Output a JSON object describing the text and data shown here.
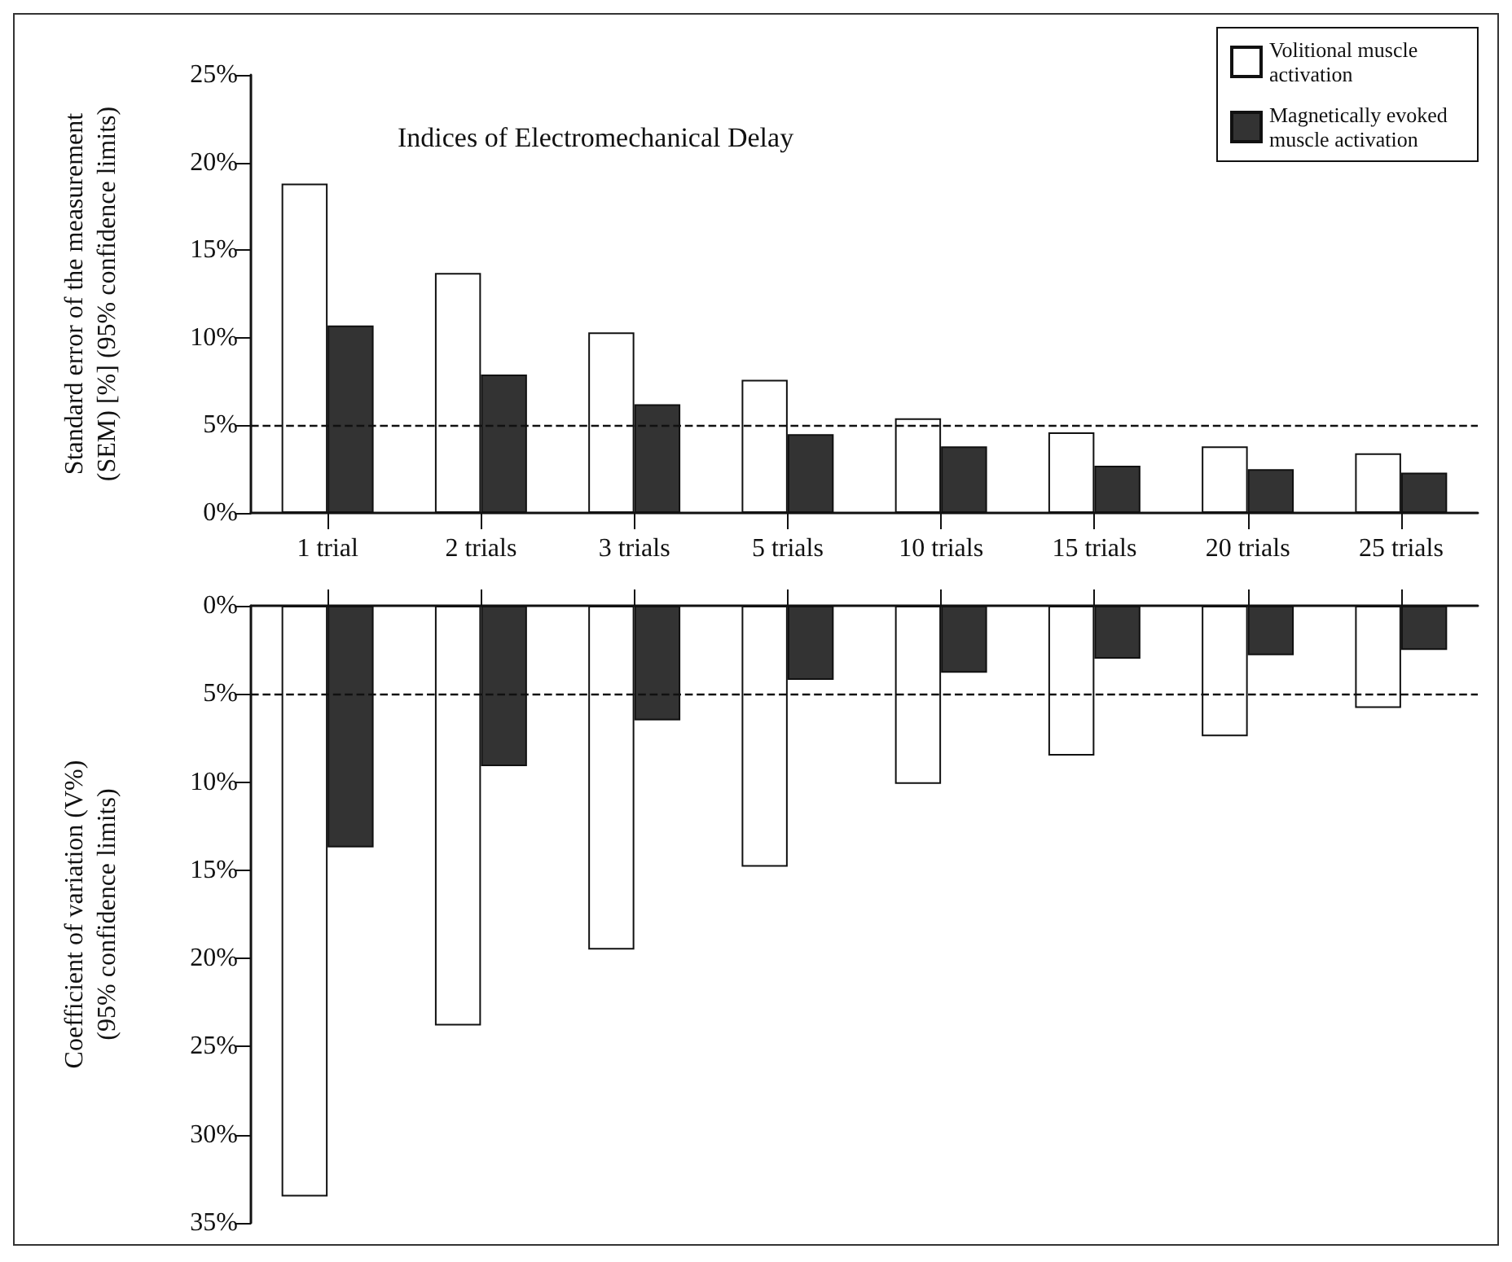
{
  "chart_data": [
    {
      "type": "bar",
      "title": "Indices of Electromechanical Delay",
      "ylabel": "Standard error of the measurement\n(SEM) [%] (95% confidence limits)",
      "categories": [
        "1 trial",
        "2 trials",
        "3 trials",
        "5 trials",
        "10 trials",
        "15 trials",
        "20 trials",
        "25 trials"
      ],
      "series": [
        {
          "name": "Volitional muscle activation",
          "color": "#ffffff",
          "values": [
            18.8,
            13.7,
            10.3,
            7.6,
            5.4,
            4.6,
            3.8,
            3.4
          ]
        },
        {
          "name": "Magnetically evoked muscle activation",
          "color": "#333333",
          "values": [
            10.7,
            7.9,
            6.2,
            4.5,
            3.8,
            2.7,
            2.5,
            2.3
          ]
        }
      ],
      "ylim": [
        0,
        25
      ],
      "yticks": [
        {
          "value": 0,
          "label": "0%"
        },
        {
          "value": 5,
          "label": "5%"
        },
        {
          "value": 10,
          "label": "10%"
        },
        {
          "value": 15,
          "label": "15%"
        },
        {
          "value": 20,
          "label": "20%"
        },
        {
          "value": 25,
          "label": "25%"
        }
      ],
      "ref_lines": [
        {
          "axis": "y",
          "value": 5,
          "line_style": "dashed"
        }
      ],
      "legend": "top right"
    },
    {
      "type": "bar",
      "ylabel": "Coefficient of variation (V%)\n(95% confidence limits)",
      "categories": [
        null,
        null,
        null,
        null,
        null,
        null,
        null,
        null
      ],
      "series": [
        {
          "color": "#ffffff",
          "values": [
            33.5,
            23.8,
            19.5,
            14.8,
            10.1,
            8.5,
            7.4,
            5.8
          ]
        },
        {
          "color": "#333333",
          "values": [
            13.7,
            9.1,
            6.5,
            4.2,
            3.8,
            3.0,
            2.8,
            2.5
          ]
        }
      ],
      "ylim": [
        35,
        0
      ],
      "yticks": [
        {
          "value": 0,
          "label": "0%"
        },
        {
          "value": 5,
          "label": "5%"
        },
        {
          "value": 10,
          "label": "10%"
        },
        {
          "value": 15,
          "label": "15%"
        },
        {
          "value": 20,
          "label": "20%"
        },
        {
          "value": 25,
          "label": "25%"
        },
        {
          "value": 30,
          "label": "30%"
        },
        {
          "value": 35,
          "label": "35%"
        }
      ],
      "ref_lines": [
        {
          "axis": "y",
          "value": 5,
          "line_style": "dashed"
        }
      ],
      "tick_labels": "y"
    }
  ]
}
